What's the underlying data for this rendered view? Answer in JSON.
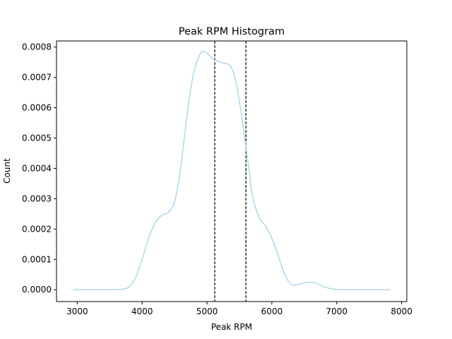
{
  "chart_data": {
    "type": "line",
    "title": "Peak RPM Histogram",
    "xlabel": "Peak RPM",
    "ylabel": "Count",
    "xlim": [
      2680,
      8080
    ],
    "ylim": [
      -3.9e-05,
      0.00082
    ],
    "xticks": [
      {
        "value": 3000,
        "label": "3000"
      },
      {
        "value": 4000,
        "label": "4000"
      },
      {
        "value": 5000,
        "label": "5000"
      },
      {
        "value": 6000,
        "label": "6000"
      },
      {
        "value": 7000,
        "label": "7000"
      },
      {
        "value": 8000,
        "label": "8000"
      }
    ],
    "yticks": [
      {
        "value": 0.0,
        "label": "0.0000"
      },
      {
        "value": 0.0001,
        "label": "0.0001"
      },
      {
        "value": 0.0002,
        "label": "0.0002"
      },
      {
        "value": 0.0003,
        "label": "0.0003"
      },
      {
        "value": 0.0004,
        "label": "0.0004"
      },
      {
        "value": 0.0005,
        "label": "0.0005"
      },
      {
        "value": 0.0006,
        "label": "0.0006"
      },
      {
        "value": 0.0007,
        "label": "0.0007"
      },
      {
        "value": 0.0008,
        "label": "0.0008"
      }
    ],
    "grid": false,
    "series": [
      {
        "color": "#add8e6",
        "x": [
          2940,
          3200,
          3500,
          3700,
          3800,
          3900,
          4000,
          4100,
          4200,
          4300,
          4400,
          4500,
          4600,
          4700,
          4800,
          4900,
          4950,
          5000,
          5050,
          5100,
          5200,
          5300,
          5350,
          5400,
          5450,
          5500,
          5550,
          5600,
          5650,
          5700,
          5800,
          5900,
          6000,
          6100,
          6200,
          6300,
          6400,
          6500,
          6600,
          6700,
          6800,
          6900,
          7000,
          7200,
          7500,
          7820
        ],
        "y": [
          0.0,
          0.0,
          0.0,
          2e-06,
          1e-05,
          4e-05,
          0.0001,
          0.00017,
          0.00022,
          0.000245,
          0.000255,
          0.00029,
          0.00041,
          0.00059,
          0.00072,
          0.00078,
          0.000785,
          0.00078,
          0.00077,
          0.00076,
          0.00075,
          0.000745,
          0.00074,
          0.00072,
          0.00068,
          0.00062,
          0.00055,
          0.00047,
          0.00039,
          0.00031,
          0.00024,
          0.00021,
          0.00017,
          0.00011,
          5e-05,
          1.7e-05,
          1.7e-05,
          2.3e-05,
          2.5e-05,
          2e-05,
          1e-05,
          4e-06,
          1e-06,
          0.0,
          0.0,
          0.0
        ]
      }
    ],
    "vlines": [
      {
        "x": 5120,
        "color": "#000000",
        "style": "dashed"
      },
      {
        "x": 5600,
        "color": "#000000",
        "style": "dashed"
      }
    ]
  }
}
